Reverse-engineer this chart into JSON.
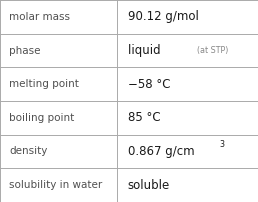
{
  "rows": [
    {
      "label": "molar mass",
      "value": "90.12 g/mol",
      "type": "plain"
    },
    {
      "label": "phase",
      "value": "liquid",
      "suffix": "(at STP)",
      "type": "phase"
    },
    {
      "label": "melting point",
      "value": "−58 °C",
      "type": "plain"
    },
    {
      "label": "boiling point",
      "value": "85 °C",
      "type": "plain"
    },
    {
      "label": "density",
      "value": "0.867 g/cm",
      "superscript": "3",
      "type": "density"
    },
    {
      "label": "solubility in water",
      "value": "soluble",
      "type": "plain"
    }
  ],
  "col_split": 0.455,
  "bg_color": "#ffffff",
  "border_color": "#aaaaaa",
  "label_color": "#505050",
  "value_color": "#1a1a1a",
  "suffix_color": "#888888",
  "label_fontsize": 7.5,
  "value_fontsize": 8.5,
  "suffix_fontsize": 5.8,
  "sup_fontsize": 5.8
}
